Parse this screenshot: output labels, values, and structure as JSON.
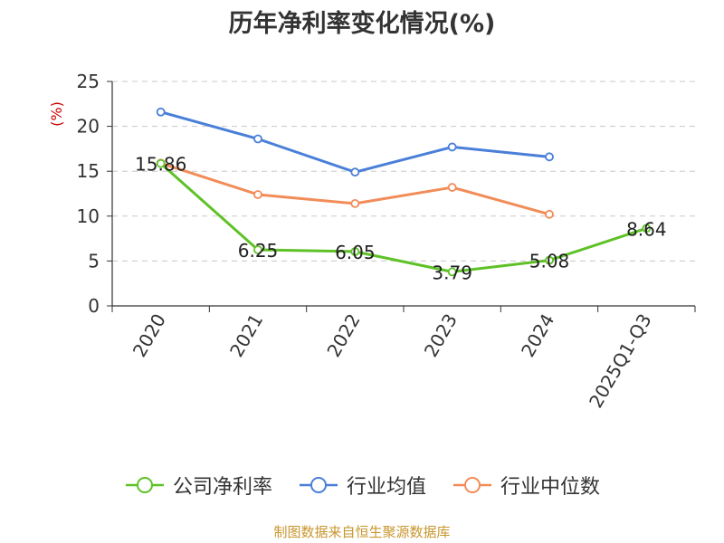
{
  "chart_data": {
    "type": "line",
    "title": "历年净利率变化情况(%)",
    "ylabel": "(%)",
    "xlabel": "",
    "categories": [
      "2020",
      "2021",
      "2022",
      "2023",
      "2024",
      "2025Q1-Q3"
    ],
    "ylim": [
      0,
      25
    ],
    "yticks": [
      0,
      5,
      10,
      15,
      20,
      25
    ],
    "grid": true,
    "legend_position": "bottom",
    "series": [
      {
        "name": "公司净利率",
        "color": "#5ec227",
        "values": [
          15.86,
          6.25,
          6.05,
          3.79,
          5.08,
          8.64
        ],
        "labels": [
          "15.86",
          "6.25",
          "6.05",
          "3.79",
          "5.08",
          "8.64"
        ]
      },
      {
        "name": "行业均值",
        "color": "#4a7fd9",
        "values": [
          21.6,
          18.6,
          14.9,
          17.7,
          16.6,
          null
        ]
      },
      {
        "name": "行业中位数",
        "color": "#f28c58",
        "values": [
          15.9,
          12.4,
          11.4,
          13.2,
          10.2,
          null
        ]
      }
    ]
  },
  "footer": {
    "source": "制图数据来自恒生聚源数据库"
  }
}
